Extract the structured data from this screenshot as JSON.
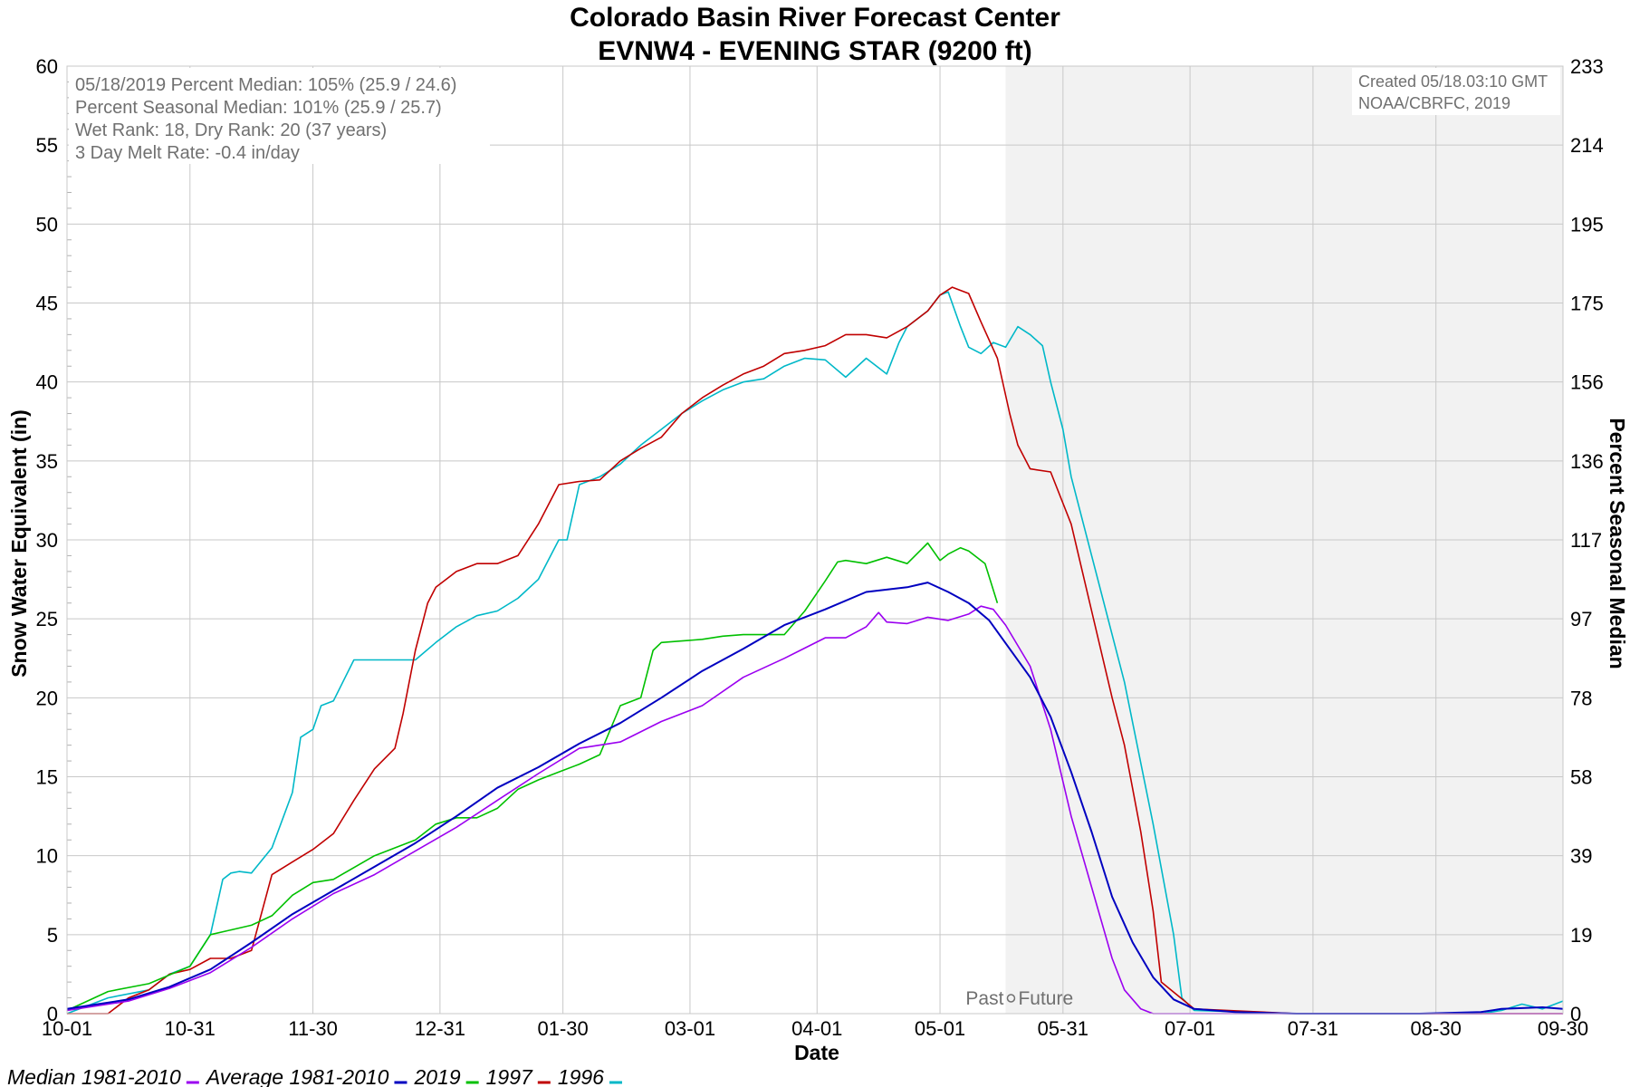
{
  "colors": {
    "median": "#9b00f0",
    "average": "#0000c0",
    "y2019": "#00c000",
    "y1997": "#c00000",
    "y1996": "#00b8c8",
    "forecast_shade": "#f2f2f2",
    "grid": "#c8c8c8",
    "info_text": "#707070"
  },
  "info_box": {
    "line1": "05/18/2019 Percent Median: 105% (25.9 / 24.6)",
    "line2": "Percent Seasonal Median: 101% (25.9 / 25.7)",
    "line3": "Wet Rank: 18, Dry Rank: 20  (37 years)",
    "line4": "3 Day Melt Rate: -0.4 in/day"
  },
  "created_box": {
    "line1": "Created 05/18.03:10 GMT",
    "line2": "NOAA/CBRFC, 2019"
  },
  "past_future": {
    "past": "Past",
    "future": "Future"
  },
  "legend": [
    {
      "label": "Median 1981-2010",
      "color_key": "median"
    },
    {
      "label": "Average 1981-2010",
      "color_key": "average"
    },
    {
      "label": "2019",
      "color_key": "y2019"
    },
    {
      "label": "1997",
      "color_key": "y1997"
    },
    {
      "label": "1996",
      "color_key": "y1996"
    }
  ],
  "chart_data": {
    "type": "line",
    "title": "Colorado Basin River Forecast Center",
    "subtitle": "EVNW4 - EVENING STAR (9200 ft)",
    "xlabel": "Date",
    "ylabel": "Snow Water Equivalent (in)",
    "y2label": "Percent Seasonal Median",
    "ylim": [
      0,
      60
    ],
    "y_ticks": [
      0,
      5,
      10,
      15,
      20,
      25,
      30,
      35,
      40,
      45,
      50,
      55,
      60
    ],
    "y2_ticks": [
      "0",
      "19",
      "39",
      "58",
      "78",
      "97",
      "117",
      "136",
      "156",
      "175",
      "195",
      "214",
      "233"
    ],
    "x_range_days": [
      0,
      365
    ],
    "x_tick_labels": [
      "10-01",
      "10-31",
      "11-30",
      "12-31",
      "01-30",
      "03-01",
      "04-01",
      "05-01",
      "05-31",
      "07-01",
      "07-31",
      "08-30",
      "09-30"
    ],
    "x_tick_days": [
      0,
      30,
      60,
      91,
      121,
      152,
      183,
      213,
      243,
      274,
      304,
      334,
      365
    ],
    "today_day": 229,
    "grid": true,
    "legend_position": "bottom",
    "series": [
      {
        "name": "Median 1981-2010",
        "color_key": "median",
        "x": [
          0,
          15,
          25,
          35,
          45,
          55,
          65,
          75,
          85,
          95,
          105,
          115,
          125,
          135,
          145,
          155,
          165,
          175,
          185,
          190,
          195,
          198,
          200,
          205,
          210,
          215,
          220,
          223,
          226,
          229,
          235,
          240,
          245,
          250,
          255,
          258,
          262,
          265,
          270,
          275,
          300,
          330,
          350,
          365
        ],
        "y": [
          0.2,
          0.8,
          1.6,
          2.6,
          4.2,
          6.0,
          7.6,
          8.8,
          10.3,
          11.8,
          13.5,
          15.2,
          16.8,
          17.2,
          18.5,
          19.5,
          21.3,
          22.5,
          23.8,
          23.8,
          24.5,
          25.4,
          24.8,
          24.7,
          25.1,
          24.9,
          25.3,
          25.8,
          25.6,
          24.6,
          22.0,
          18.0,
          12.5,
          8.0,
          3.5,
          1.5,
          0.3,
          0.0,
          0.0,
          0.0,
          0.0,
          0.0,
          0.0,
          0.0
        ]
      },
      {
        "name": "Average 1981-2010",
        "color_key": "average",
        "x": [
          0,
          15,
          25,
          35,
          45,
          55,
          65,
          75,
          85,
          95,
          105,
          115,
          125,
          135,
          145,
          155,
          165,
          175,
          185,
          195,
          205,
          210,
          215,
          220,
          225,
          230,
          235,
          240,
          245,
          250,
          255,
          260,
          265,
          270,
          275,
          285,
          300,
          330,
          345,
          350,
          360,
          365
        ],
        "y": [
          0.3,
          0.9,
          1.7,
          2.8,
          4.5,
          6.3,
          7.8,
          9.3,
          10.8,
          12.5,
          14.3,
          15.6,
          17.1,
          18.4,
          20.0,
          21.7,
          23.1,
          24.6,
          25.6,
          26.7,
          27.0,
          27.3,
          26.7,
          26.0,
          24.9,
          23.1,
          21.3,
          18.8,
          15.3,
          11.5,
          7.4,
          4.5,
          2.3,
          0.9,
          0.3,
          0.1,
          0.0,
          0.0,
          0.1,
          0.3,
          0.4,
          0.3
        ]
      },
      {
        "name": "2019",
        "color_key": "y2019",
        "x": [
          0,
          10,
          20,
          30,
          35,
          40,
          45,
          50,
          55,
          60,
          65,
          75,
          85,
          90,
          95,
          100,
          105,
          110,
          115,
          120,
          125,
          130,
          135,
          140,
          143,
          145,
          150,
          155,
          160,
          165,
          170,
          175,
          180,
          185,
          188,
          190,
          195,
          200,
          205,
          210,
          213,
          215,
          218,
          220,
          224,
          227
        ],
        "y": [
          0.2,
          1.4,
          1.9,
          3.0,
          5.0,
          5.3,
          5.6,
          6.2,
          7.5,
          8.3,
          8.5,
          10.0,
          11.0,
          12.0,
          12.4,
          12.4,
          13.0,
          14.2,
          14.8,
          15.3,
          15.8,
          16.4,
          19.5,
          20.0,
          23.0,
          23.5,
          23.6,
          23.7,
          23.9,
          24.0,
          24.0,
          24.0,
          25.5,
          27.4,
          28.6,
          28.7,
          28.5,
          28.9,
          28.5,
          29.8,
          28.7,
          29.1,
          29.5,
          29.3,
          28.5,
          26.0
        ]
      },
      {
        "name": "1997",
        "color_key": "y1997",
        "x": [
          0,
          10,
          15,
          20,
          25,
          30,
          35,
          40,
          45,
          50,
          55,
          60,
          65,
          70,
          75,
          80,
          82,
          85,
          88,
          90,
          95,
          100,
          105,
          110,
          115,
          120,
          125,
          130,
          135,
          140,
          145,
          150,
          155,
          160,
          165,
          170,
          175,
          180,
          185,
          190,
          195,
          200,
          205,
          210,
          213,
          216,
          220,
          223,
          227,
          230,
          232,
          235,
          240,
          245,
          250,
          255,
          258,
          262,
          265,
          267,
          275,
          300,
          330,
          360,
          365
        ],
        "y": [
          0.0,
          0.0,
          1.0,
          1.5,
          2.5,
          2.8,
          3.5,
          3.5,
          4.0,
          8.8,
          9.6,
          10.4,
          11.4,
          13.5,
          15.5,
          16.8,
          19.0,
          23.0,
          26.0,
          27.0,
          28.0,
          28.5,
          28.5,
          29.0,
          31.0,
          33.5,
          33.7,
          33.8,
          35.0,
          35.8,
          36.5,
          38.0,
          39.0,
          39.8,
          40.5,
          41.0,
          41.8,
          42.0,
          42.3,
          43.0,
          43.0,
          42.8,
          43.5,
          44.5,
          45.5,
          46.0,
          45.6,
          43.8,
          41.5,
          38.0,
          36.0,
          34.5,
          34.3,
          31.0,
          25.5,
          20.0,
          17.0,
          11.5,
          6.5,
          2.0,
          0.3,
          0.0,
          0.0,
          0.0,
          0.0
        ]
      },
      {
        "name": "1996",
        "color_key": "y1996",
        "x": [
          0,
          10,
          20,
          25,
          30,
          35,
          38,
          40,
          42,
          45,
          50,
          55,
          57,
          60,
          62,
          65,
          70,
          75,
          80,
          85,
          90,
          95,
          100,
          105,
          110,
          115,
          120,
          122,
          125,
          130,
          135,
          140,
          145,
          150,
          155,
          160,
          165,
          170,
          175,
          180,
          185,
          190,
          195,
          200,
          203,
          205,
          210,
          213,
          215,
          218,
          220,
          223,
          226,
          229,
          232,
          235,
          238,
          240,
          243,
          245,
          250,
          255,
          258,
          265,
          270,
          272,
          275,
          300,
          330,
          345,
          350,
          355,
          360,
          365
        ],
        "y": [
          0.0,
          1.0,
          1.5,
          2.5,
          3.0,
          5.0,
          8.5,
          8.9,
          9.0,
          8.9,
          10.5,
          14.0,
          17.5,
          18.0,
          19.5,
          19.8,
          22.4,
          22.4,
          22.4,
          22.4,
          23.5,
          24.5,
          25.2,
          25.5,
          26.3,
          27.5,
          30.0,
          30.0,
          33.5,
          34.0,
          34.8,
          36.0,
          37.0,
          38.0,
          38.8,
          39.5,
          40.0,
          40.2,
          41.0,
          41.5,
          41.4,
          40.3,
          41.5,
          40.5,
          42.5,
          43.5,
          44.5,
          45.5,
          45.7,
          43.5,
          42.2,
          41.8,
          42.5,
          42.2,
          43.5,
          43.0,
          42.3,
          40.0,
          37.0,
          34.0,
          29.0,
          24.0,
          21.0,
          12.0,
          5.0,
          1.0,
          0.2,
          0.0,
          0.0,
          0.0,
          0.2,
          0.6,
          0.3,
          0.8
        ]
      }
    ]
  }
}
